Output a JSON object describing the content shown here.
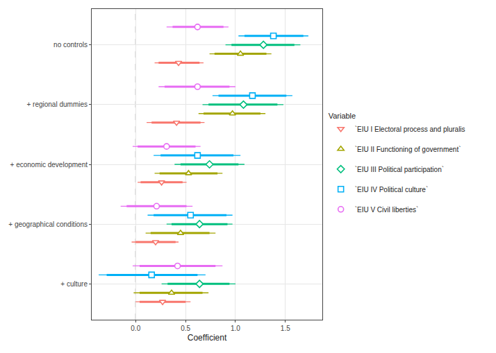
{
  "chart_data": {
    "type": "coefficient",
    "x_label": "Coefficient",
    "legend_title": "Variable",
    "legend": "right",
    "grid": true,
    "reference_line": 0,
    "line_style": "dashed",
    "categories": [
      "no controls",
      "+ regional dummies",
      "+ economic development",
      "+ geographical conditions",
      "+ culture"
    ],
    "xlim": [
      -0.44,
      1.87
    ],
    "xticks": [
      {
        "value": 0,
        "label": "0.0"
      },
      0.5,
      {
        "value": 1,
        "label": "1.0"
      },
      1.5
    ],
    "series": [
      {
        "name": "`EIU I Electoral process and pluralis",
        "color": "#F8766D",
        "marker": "triangle-down",
        "values": [
          0.43,
          0.41,
          0.26,
          0.2,
          0.27
        ],
        "inner_low": [
          0.23,
          0.16,
          0.05,
          0.0,
          0.04
        ],
        "inner_high": [
          0.64,
          0.65,
          0.47,
          0.4,
          0.5
        ],
        "outer_low": [
          0.19,
          0.11,
          0.02,
          -0.04,
          0.0
        ],
        "outer_high": [
          0.68,
          0.69,
          0.51,
          0.43,
          0.55
        ]
      },
      {
        "name": "`EIU II Functioning of government`",
        "color": "#A3A500",
        "marker": "triangle-up",
        "values": [
          1.05,
          0.97,
          0.53,
          0.45,
          0.36
        ],
        "inner_low": [
          0.79,
          0.68,
          0.24,
          0.15,
          0.04
        ],
        "inner_high": [
          1.31,
          1.25,
          0.82,
          0.74,
          0.67
        ],
        "outer_low": [
          0.74,
          0.63,
          0.19,
          0.1,
          -0.02
        ],
        "outer_high": [
          1.36,
          1.3,
          0.87,
          0.8,
          0.73
        ]
      },
      {
        "name": "`EIU III Political participation`",
        "color": "#00BF7D",
        "marker": "diamond",
        "values": [
          1.28,
          1.08,
          0.74,
          0.64,
          0.64
        ],
        "inner_low": [
          0.96,
          0.73,
          0.45,
          0.36,
          0.32
        ],
        "inner_high": [
          1.59,
          1.42,
          1.03,
          0.92,
          0.94
        ],
        "outer_low": [
          0.9,
          0.67,
          0.39,
          0.31,
          0.26
        ],
        "outer_high": [
          1.65,
          1.48,
          1.09,
          0.97,
          1.0
        ]
      },
      {
        "name": "`EIU IV Political culture`",
        "color": "#00B0F6",
        "marker": "square",
        "values": [
          1.38,
          1.17,
          0.62,
          0.55,
          0.16
        ],
        "inner_low": [
          1.09,
          0.83,
          0.25,
          0.18,
          -0.29
        ],
        "inner_high": [
          1.68,
          1.51,
          0.98,
          0.91,
          0.62
        ],
        "outer_low": [
          1.03,
          0.77,
          0.18,
          0.12,
          -0.37
        ],
        "outer_high": [
          1.73,
          1.57,
          1.05,
          0.97,
          0.7
        ]
      },
      {
        "name": "`EIU V Civil liberties`",
        "color": "#E76BF3",
        "marker": "circle",
        "values": [
          0.62,
          0.62,
          0.31,
          0.21,
          0.42
        ],
        "inner_low": [
          0.37,
          0.29,
          0.02,
          -0.09,
          0.04
        ],
        "inner_high": [
          0.88,
          0.94,
          0.6,
          0.51,
          0.8
        ],
        "outer_low": [
          0.31,
          0.23,
          -0.03,
          -0.15,
          -0.03
        ],
        "outer_high": [
          0.93,
          1.0,
          0.65,
          0.57,
          0.87
        ]
      }
    ]
  }
}
